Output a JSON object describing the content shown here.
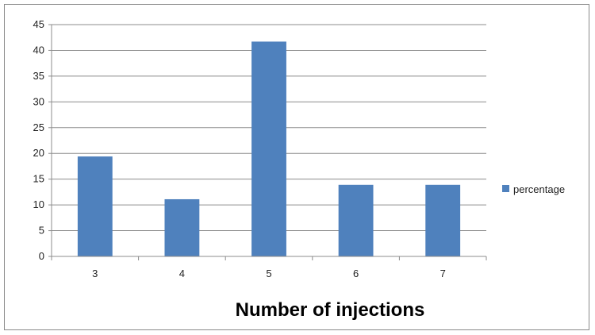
{
  "chart_data": {
    "type": "bar",
    "categories": [
      "3",
      "4",
      "5",
      "6",
      "7"
    ],
    "series": [
      {
        "name": "percentage",
        "values": [
          19.4,
          11.1,
          41.7,
          13.9,
          13.9
        ],
        "color": "#4f81bd"
      }
    ],
    "xlabel": "Number of injections",
    "ylabel": "",
    "ylim": [
      0,
      45
    ],
    "yticks": [
      "0",
      "5",
      "10",
      "15",
      "20",
      "25",
      "30",
      "35",
      "40",
      "45"
    ],
    "grid": true,
    "legend": "right"
  }
}
